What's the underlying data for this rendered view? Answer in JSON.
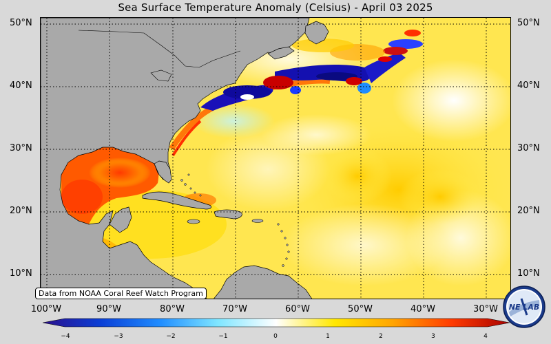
{
  "title": "Sea Surface Temperature Anomaly (Celsius) - April 03 2025",
  "credit": "Data from NOAA Coral Reef Watch Program",
  "lat_labels": [
    "50°N",
    "40°N",
    "30°N",
    "20°N",
    "10°N"
  ],
  "lon_labels": [
    "100°W",
    "90°W",
    "80°W",
    "70°W",
    "60°W",
    "50°W",
    "40°W",
    "30°W"
  ],
  "colorbar": {
    "ticks": [
      "−4",
      "−3",
      "−2",
      "−1",
      "0",
      "1",
      "2",
      "3",
      "4"
    ],
    "colors": [
      "#2b0f8c",
      "#0a3fd6",
      "#1f8cff",
      "#7fe6ff",
      "#ffffff",
      "#ffe800",
      "#ffa400",
      "#ff3b00",
      "#a80000"
    ]
  },
  "logo": {
    "text": "NESDIS LAB"
  },
  "colors": {
    "land": "#a9a9a9",
    "warm": "#ffd700",
    "hot": "#ff4a00",
    "cold": "#1414b4"
  }
}
